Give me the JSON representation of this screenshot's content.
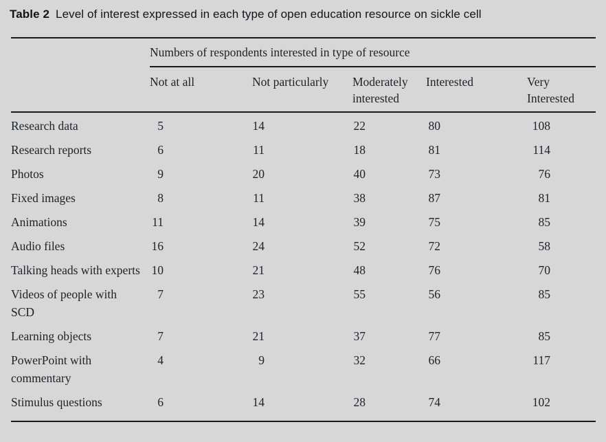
{
  "page": {
    "background_color": "#d6d7d6",
    "text_color": "#22222a",
    "rule_color": "#191919"
  },
  "title": {
    "label": "Table 2",
    "text": "Level of interest expressed in each type of open education resource on sickle cell"
  },
  "table": {
    "span_header": "Numbers of respondents interested in type of resource",
    "columns": [
      "Not at all",
      "Not particularly",
      "Moderately interested",
      "Interested",
      "Very Interested"
    ],
    "rows": [
      {
        "label": "Research data",
        "values": [
          5,
          14,
          22,
          80,
          108
        ]
      },
      {
        "label": "Research reports",
        "values": [
          6,
          11,
          18,
          81,
          114
        ]
      },
      {
        "label": "Photos",
        "values": [
          9,
          20,
          40,
          73,
          76
        ]
      },
      {
        "label": "Fixed images",
        "values": [
          8,
          11,
          38,
          87,
          81
        ]
      },
      {
        "label": "Animations",
        "values": [
          11,
          14,
          39,
          75,
          85
        ]
      },
      {
        "label": "Audio files",
        "values": [
          16,
          24,
          52,
          72,
          58
        ]
      },
      {
        "label": "Talking heads with experts",
        "values": [
          10,
          21,
          48,
          76,
          70
        ]
      },
      {
        "label": "Videos of people with SCD",
        "values": [
          7,
          23,
          55,
          56,
          85
        ]
      },
      {
        "label": "Learning objects",
        "values": [
          7,
          21,
          37,
          77,
          85
        ]
      },
      {
        "label": "PowerPoint with commentary",
        "values": [
          4,
          9,
          32,
          66,
          117
        ]
      },
      {
        "label": "Stimulus questions",
        "values": [
          6,
          14,
          28,
          74,
          102
        ]
      }
    ]
  }
}
